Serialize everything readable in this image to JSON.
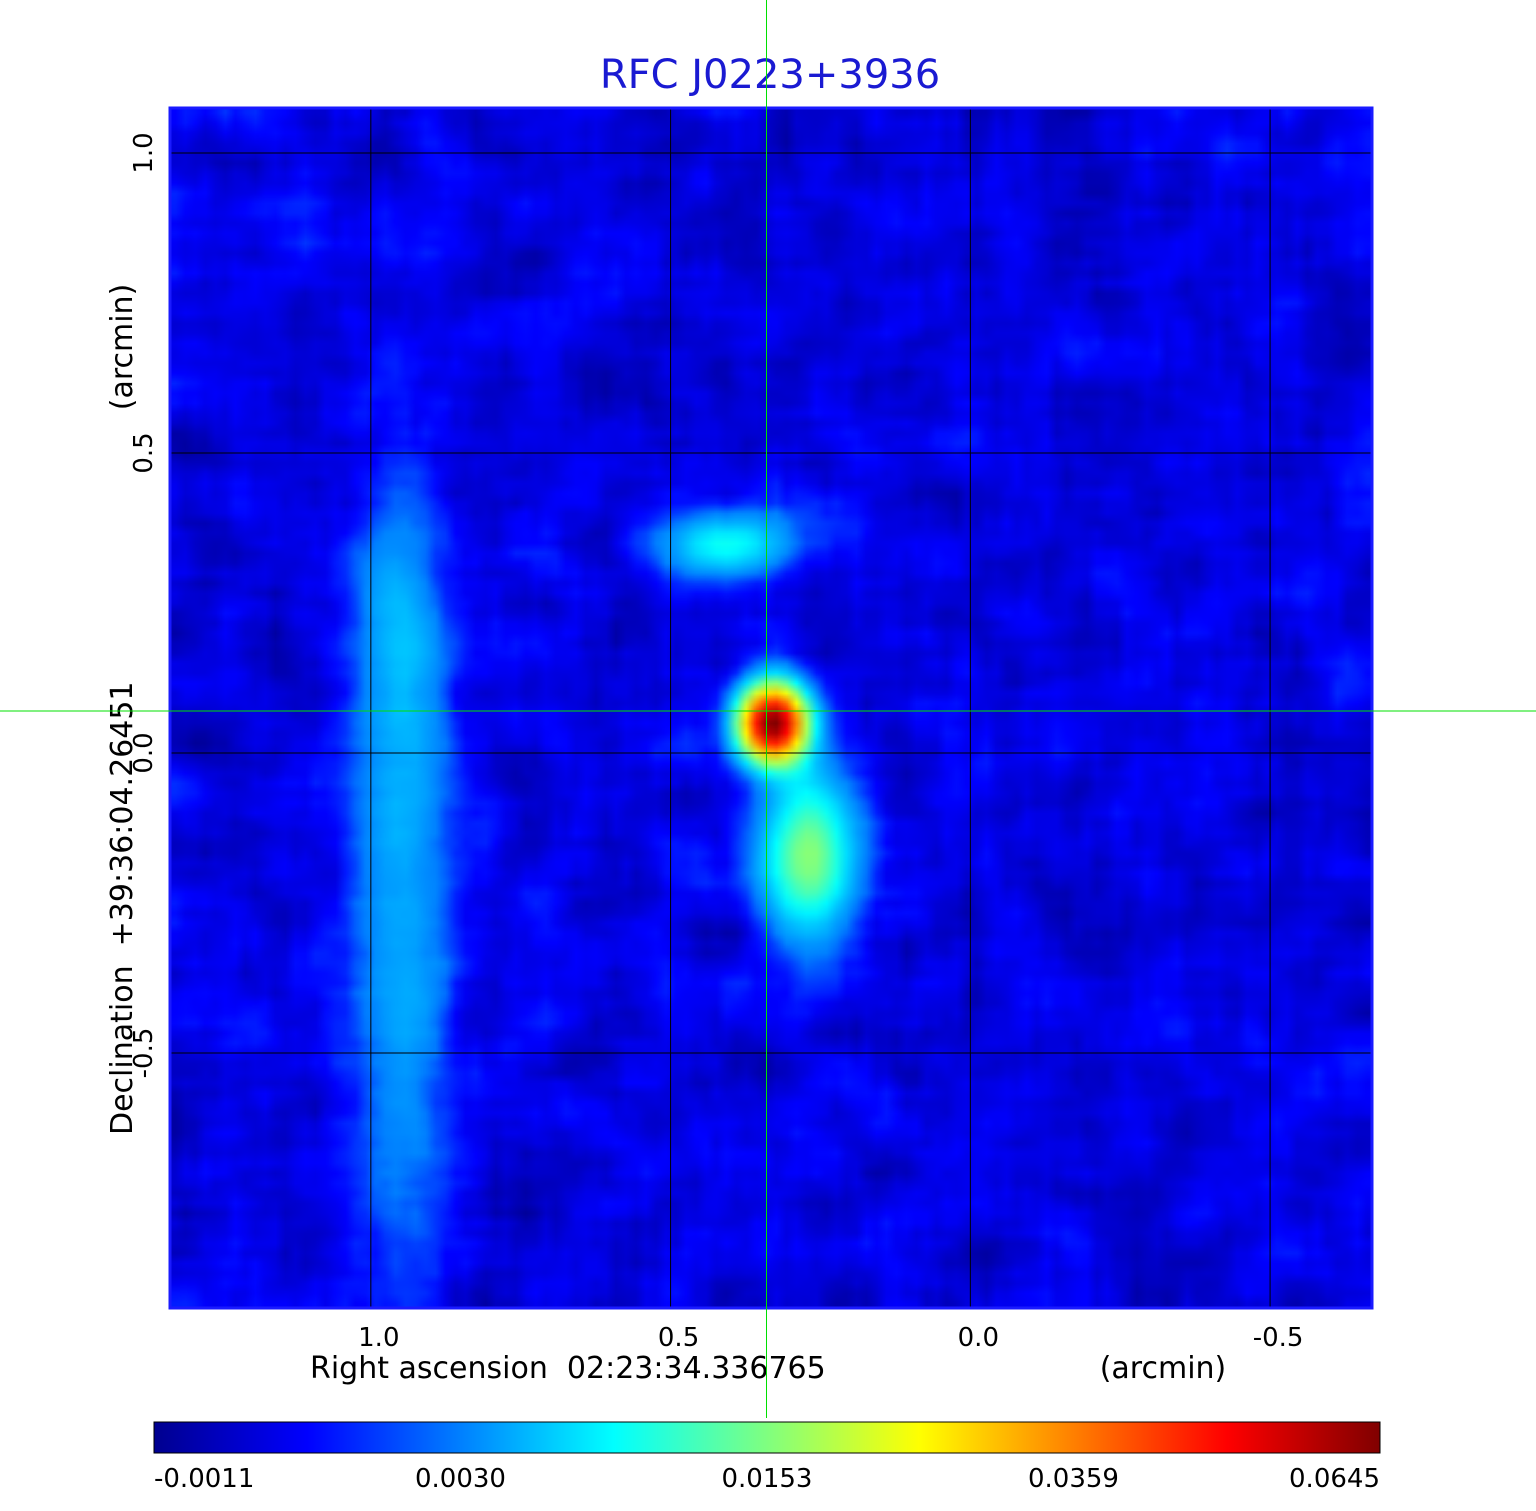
{
  "chart_data": {
    "type": "heatmap",
    "title": "RFC J0223+3936",
    "xlabel": "Right ascension  02:23:34.336765",
    "xunit": "(arcmin)",
    "ylabel": "Declination  +39:36:04.26451",
    "yunit": "(arcmin)",
    "xlim": [
      1.335,
      -0.67
    ],
    "ylim": [
      -0.925,
      1.075
    ],
    "x_ticks": [
      1.0,
      0.5,
      0.0,
      -0.5
    ],
    "x_tick_labels": [
      "1.0",
      "0.5",
      "0.0",
      "-0.5"
    ],
    "y_ticks": [
      -0.5,
      0.0,
      0.5,
      1.0
    ],
    "y_tick_labels": [
      "-0.5",
      "0.0",
      "0.5",
      "1.0"
    ],
    "grid": true,
    "crosshair": {
      "x": 0.34,
      "y": 0.07,
      "color": "#00e000"
    },
    "colormap": "jet",
    "colorbar": {
      "orientation": "horizontal",
      "placement": "bottom",
      "ticks": [
        -0.0011,
        0.003,
        0.0153,
        0.0359,
        0.0645
      ],
      "tick_labels": [
        "-0.0011",
        "0.0030",
        "0.0153",
        "0.0359",
        "0.0645"
      ]
    },
    "components": [
      {
        "x": 0.33,
        "y": 0.05,
        "peak": 0.0645
      },
      {
        "x": 0.27,
        "y": -0.17,
        "peak": 0.016
      },
      {
        "x": 0.41,
        "y": 0.35,
        "peak": 0.009
      },
      {
        "x": 0.95,
        "y": -0.35,
        "peak": 0.004
      },
      {
        "x": 0.95,
        "y": 0.15,
        "peak": 0.004
      }
    ],
    "background_level": 0.0005
  }
}
